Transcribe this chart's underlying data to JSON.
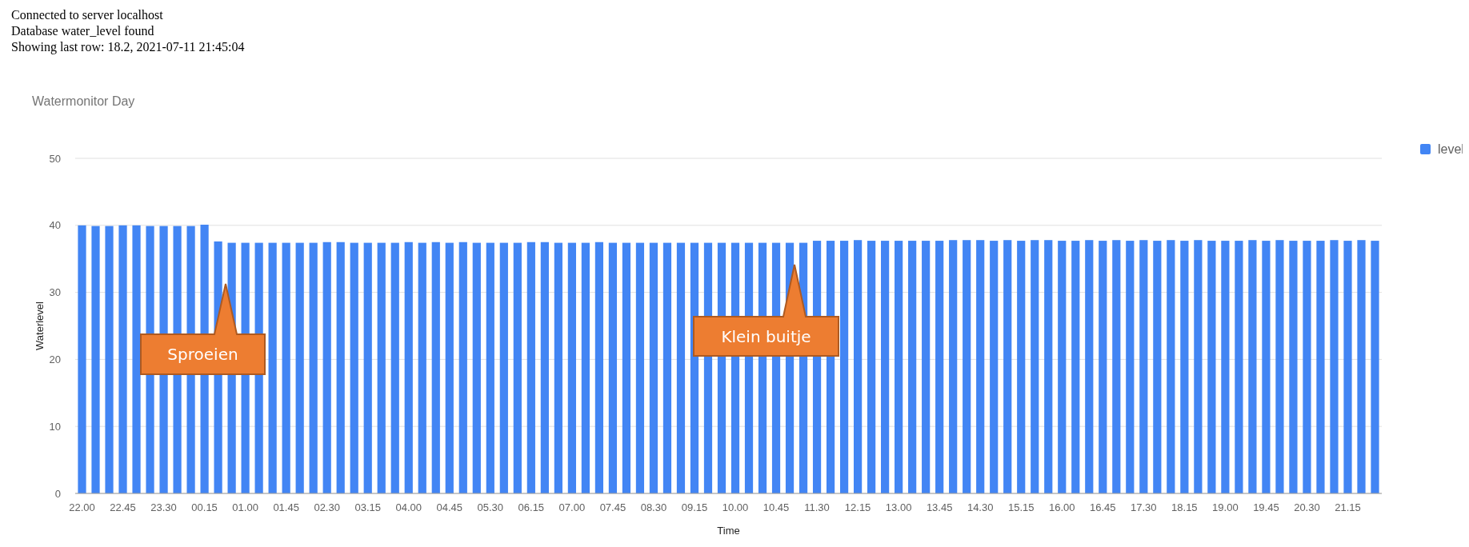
{
  "chart_data": {
    "type": "bar",
    "title": "Watermonitor Day",
    "xlabel": "Time",
    "ylabel": "Waterlevel",
    "annotations": [
      "Connected to server localhost",
      "Database water_level found",
      "Showing last row: 18.2, 2021-07-11 21:45:04",
      "Sproeien",
      "Klein buitje"
    ],
    "categories": [
      "22.00",
      null,
      null,
      "22.45",
      null,
      null,
      "23.30",
      null,
      null,
      "00.15",
      null,
      null,
      "01.00",
      null,
      null,
      "01.45",
      null,
      null,
      "02.30",
      null,
      null,
      "03.15",
      null,
      null,
      "04.00",
      null,
      null,
      "04.45",
      null,
      null,
      "05.30",
      null,
      null,
      "06.15",
      null,
      null,
      "07.00",
      null,
      null,
      "07.45",
      null,
      null,
      "08.30",
      null,
      null,
      "09.15",
      null,
      null,
      "10.00",
      null,
      null,
      "10.45",
      null,
      null,
      "11.30",
      null,
      null,
      "12.15",
      null,
      null,
      "13.00",
      null,
      null,
      "13.45",
      null,
      null,
      "14.30",
      null,
      null,
      "15.15",
      null,
      null,
      "16.00",
      null,
      null,
      "16.45",
      null,
      null,
      "17.30",
      null,
      null,
      "18.15",
      null,
      null,
      "19.00",
      null,
      null,
      "19.45",
      null,
      null,
      "20.30",
      null,
      null,
      "21.15",
      null,
      null
    ],
    "series": [
      {
        "name": "level",
        "color": "#4285f4",
        "values": [
          40,
          39.9,
          39.9,
          40,
          40,
          39.9,
          39.9,
          39.9,
          39.9,
          40.1,
          37.6,
          37.4,
          37.4,
          37.4,
          37.4,
          37.4,
          37.4,
          37.4,
          37.5,
          37.5,
          37.4,
          37.4,
          37.4,
          37.4,
          37.5,
          37.4,
          37.5,
          37.4,
          37.5,
          37.4,
          37.4,
          37.4,
          37.4,
          37.5,
          37.5,
          37.4,
          37.4,
          37.4,
          37.5,
          37.4,
          37.4,
          37.4,
          37.4,
          37.4,
          37.4,
          37.4,
          37.4,
          37.4,
          37.4,
          37.4,
          37.4,
          37.4,
          37.4,
          37.4,
          37.7,
          37.7,
          37.7,
          37.8,
          37.7,
          37.7,
          37.7,
          37.7,
          37.7,
          37.7,
          37.8,
          37.8,
          37.8,
          37.7,
          37.8,
          37.7,
          37.8,
          37.8,
          37.7,
          37.7,
          37.8,
          37.7,
          37.8,
          37.7,
          37.8,
          37.7,
          37.8,
          37.7,
          37.8,
          37.7,
          37.7,
          37.7,
          37.8,
          37.7,
          37.8,
          37.7,
          37.7,
          37.7,
          37.8,
          37.7,
          37.8,
          37.7
        ]
      }
    ],
    "ylim": [
      0,
      50
    ],
    "yticks": [
      0,
      10,
      20,
      30,
      40,
      50
    ],
    "grid": "y",
    "legend": "top right"
  }
}
